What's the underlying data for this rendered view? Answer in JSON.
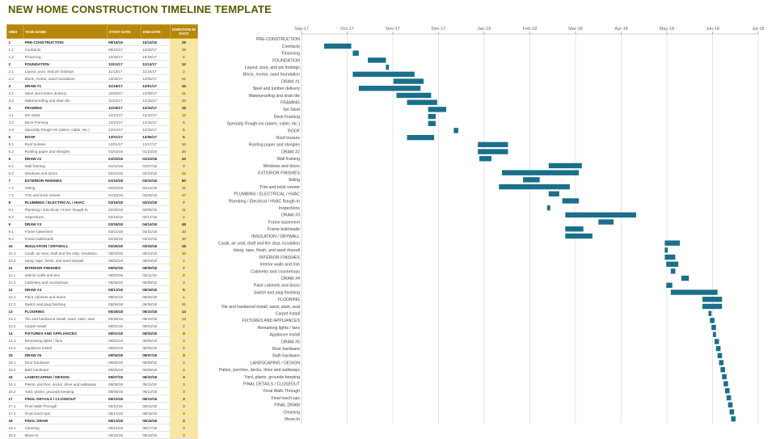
{
  "page": {
    "title": "NEW HOME CONSTRUCTION TIMELINE TEMPLATE"
  },
  "table": {
    "headers": [
      "WBS",
      "TASK NAME",
      "START DATE",
      "END DATE",
      "DURATION IN DAYS"
    ],
    "rows": [
      {
        "wbs": "1",
        "task": "PRE-CONSTRUCTION",
        "start": "09/16/16",
        "end": "10/14/16",
        "dur": "29",
        "phase": true
      },
      {
        "wbs": "1.1",
        "task": "Contracts",
        "start": "09/16/17",
        "end": "10/26/17",
        "dur": "18",
        "phase": false
      },
      {
        "wbs": "1.2",
        "task": "Financing",
        "start": "10/25/17",
        "end": "10/26/17",
        "dur": "4",
        "phase": false
      },
      {
        "wbs": "2",
        "task": "FOUNDATION",
        "start": "11/01/17",
        "end": "11/13/17",
        "dur": "12",
        "phase": true
      },
      {
        "wbs": "2.1",
        "task": "Layout, pour, and pin footings",
        "start": "11/13/17",
        "end": "11/15/17",
        "dur": "2",
        "phase": false
      },
      {
        "wbs": "2.2",
        "task": "Block, mortar, sand foundation",
        "start": "10/26/17",
        "end": "12/06/17",
        "dur": "41",
        "phase": false
      },
      {
        "wbs": "3",
        "task": "DRAW #1",
        "start": "11/16/17",
        "end": "12/01/17",
        "dur": "15",
        "phase": true
      },
      {
        "wbs": "3.1",
        "task": "Steel and lumber delivery",
        "start": "10/29/17",
        "end": "12/09/17",
        "dur": "41",
        "phase": false
      },
      {
        "wbs": "3.2",
        "task": "Waterproofing and drain tile",
        "start": "11/22/17",
        "end": "12/15/17",
        "dur": "23",
        "phase": false
      },
      {
        "wbs": "4",
        "task": "FRAMING",
        "start": "11/29/17",
        "end": "12/15/17",
        "dur": "16",
        "phase": true
      },
      {
        "wbs": "4.1",
        "task": "Set Steel",
        "start": "12/10/17",
        "end": "12/22/17",
        "dur": "12",
        "phase": false
      },
      {
        "wbs": "4.2",
        "task": "Deck Framing",
        "start": "12/10/17",
        "end": "12/15/17",
        "dur": "5",
        "phase": false
      },
      {
        "wbs": "4.3",
        "task": "Specialty Rough-ins (alarm, cable, etc.)",
        "start": "12/10/17",
        "end": "12/15/17",
        "dur": "5",
        "phase": false
      },
      {
        "wbs": "5",
        "task": "ROOF",
        "start": "12/01/17",
        "end": "12/06/17",
        "dur": "5",
        "phase": true
      },
      {
        "wbs": "5.1",
        "task": "Roof trusses",
        "start": "12/01/17",
        "end": "12/17/17",
        "dur": "16",
        "phase": false
      },
      {
        "wbs": "5.2",
        "task": "Roofing paper and shingles",
        "start": "01/03/18",
        "end": "01/23/18",
        "dur": "20",
        "phase": false
      },
      {
        "wbs": "6",
        "task": "DRAW #2",
        "start": "01/03/18",
        "end": "01/23/18",
        "dur": "20",
        "phase": true
      },
      {
        "wbs": "6.1",
        "task": "Wall framing",
        "start": "01/04/18",
        "end": "01/07/18",
        "dur": "3",
        "phase": false
      },
      {
        "wbs": "6.2",
        "task": "Windows and doors",
        "start": "02/16/18",
        "end": "03/10/18",
        "dur": "22",
        "phase": false
      },
      {
        "wbs": "7",
        "task": "EXTERIOR FINISHES",
        "start": "01/16/18",
        "end": "03/10/18",
        "dur": "50",
        "phase": true
      },
      {
        "wbs": "7.1",
        "task": "Siding",
        "start": "02/03/18",
        "end": "02/14/18",
        "dur": "11",
        "phase": false
      },
      {
        "wbs": "7.2",
        "task": "Trim and brick veneer",
        "start": "01/16/18",
        "end": "03/06/18",
        "dur": "47",
        "phase": false
      },
      {
        "wbs": "8",
        "task": "PLUMBING / ELECTRICAL / HVAC",
        "start": "02/16/18",
        "end": "02/23/18",
        "dur": "7",
        "phase": true
      },
      {
        "wbs": "8.1",
        "task": "Plumbing / Electrical / HVAC Rough-In",
        "start": "02/25/18",
        "end": "03/06/18",
        "dur": "11",
        "phase": false
      },
      {
        "wbs": "8.2",
        "task": "Inspections",
        "start": "02/15/18",
        "end": "02/17/18",
        "dur": "2",
        "phase": false
      },
      {
        "wbs": "9",
        "task": "DRAW #3",
        "start": "02/26/18",
        "end": "04/14/18",
        "dur": "48",
        "phase": true
      },
      {
        "wbs": "9.1",
        "task": "Frame basement",
        "start": "03/21/18",
        "end": "03/31/18",
        "dur": "10",
        "phase": false
      },
      {
        "wbs": "9.2",
        "task": "Frame bulkheads",
        "start": "02/26/18",
        "end": "03/10/18",
        "dur": "10",
        "phase": false
      },
      {
        "wbs": "10",
        "task": "INSULATION / DRYWALL",
        "start": "02/26/18",
        "end": "03/16/18",
        "dur": "18",
        "phase": true
      },
      {
        "wbs": "10.1",
        "task": "Caulk, air seal, draft and fire stop, insulation",
        "start": "05/03/18",
        "end": "05/13/18",
        "dur": "10",
        "phase": false
      },
      {
        "wbs": "10.2",
        "task": "Hang, tape, finish, and sand drywall",
        "start": "05/02/18",
        "end": "05/03/18",
        "dur": "1",
        "phase": false
      },
      {
        "wbs": "11",
        "task": "INTERIOR FINISHES",
        "start": "05/02/18",
        "end": "05/09/18",
        "dur": "7",
        "phase": true
      },
      {
        "wbs": "11.1",
        "task": "Interior walls and trim",
        "start": "05/03/18",
        "end": "05/11/18",
        "dur": "8",
        "phase": false
      },
      {
        "wbs": "11.2",
        "task": "Cabinetry and countertops",
        "start": "05/06/18",
        "end": "05/09/18",
        "dur": "3",
        "phase": false
      },
      {
        "wbs": "12",
        "task": "DRAW #4",
        "start": "05/13/18",
        "end": "05/18/18",
        "dur": "5",
        "phase": true
      },
      {
        "wbs": "12.1",
        "task": "Paint cabinets and doors",
        "start": "05/02/18",
        "end": "05/06/18",
        "dur": "4",
        "phase": false
      },
      {
        "wbs": "12.2",
        "task": "Switch and plug finishing",
        "start": "05/06/18",
        "end": "06/06/18",
        "dur": "31",
        "phase": false
      },
      {
        "wbs": "13",
        "task": "FLOORING",
        "start": "05/28/18",
        "end": "06/10/18",
        "dur": "13",
        "phase": true
      },
      {
        "wbs": "13.1",
        "task": "Tile and hardwood install, sand, stain, seal",
        "start": "05/28/18",
        "end": "06/10/18",
        "dur": "13",
        "phase": false
      },
      {
        "wbs": "13.2",
        "task": "Carpet install",
        "start": "06/01/18",
        "end": "06/03/18",
        "dur": "2",
        "phase": false
      },
      {
        "wbs": "14",
        "task": "FIXTURES AND APPLIANCES",
        "start": "06/01/18",
        "end": "06/04/18",
        "dur": "3",
        "phase": true
      },
      {
        "wbs": "14.1",
        "task": "Remaining lights / fans",
        "start": "06/02/18",
        "end": "06/05/18",
        "dur": "3",
        "phase": false
      },
      {
        "wbs": "14.2",
        "task": "Appliance install",
        "start": "06/04/18",
        "end": "06/06/18",
        "dur": "2",
        "phase": false
      },
      {
        "wbs": "15",
        "task": "DRAW #5",
        "start": "06/04/18",
        "end": "06/07/18",
        "dur": "3",
        "phase": true
      },
      {
        "wbs": "15.1",
        "task": "Door hardware",
        "start": "06/05/18",
        "end": "06/08/18",
        "dur": "3",
        "phase": false
      },
      {
        "wbs": "15.2",
        "task": "Bath hardware",
        "start": "06/06/18",
        "end": "06/09/18",
        "dur": "3",
        "phase": false
      },
      {
        "wbs": "16",
        "task": "LANDSCAPING / DESIGN",
        "start": "06/07/18",
        "end": "06/10/18",
        "dur": "3",
        "phase": true
      },
      {
        "wbs": "16.1",
        "task": "Patios, porches, decks, drive and walkways",
        "start": "06/08/18",
        "end": "06/11/18",
        "dur": "3",
        "phase": false
      },
      {
        "wbs": "16.2",
        "task": "Yard, plants, grounds keeping",
        "start": "06/09/18",
        "end": "06/12/18",
        "dur": "3",
        "phase": false
      },
      {
        "wbs": "17",
        "task": "FINAL DETAILS / CLOSEOUT",
        "start": "06/10/18",
        "end": "06/13/18",
        "dur": "3",
        "phase": true
      },
      {
        "wbs": "17.1",
        "task": "Final Walk-Through",
        "start": "06/11/18",
        "end": "06/14/18",
        "dur": "3",
        "phase": false
      },
      {
        "wbs": "17.2",
        "task": "Final touch-ups",
        "start": "06/12/18",
        "end": "06/15/18",
        "dur": "3",
        "phase": false
      },
      {
        "wbs": "18",
        "task": "FINAL DRAW",
        "start": "06/13/18",
        "end": "06/16/18",
        "dur": "3",
        "phase": true
      },
      {
        "wbs": "18.1",
        "task": "Cleaning",
        "start": "06/14/18",
        "end": "06/17/18",
        "dur": "3",
        "phase": false
      },
      {
        "wbs": "18.2",
        "task": "Move-In",
        "start": "06/15/18",
        "end": "06/18/18",
        "dur": "3",
        "phase": false
      }
    ]
  },
  "chart_data": {
    "type": "bar",
    "orientation": "horizontal-gantt",
    "x_ticks": [
      "Sep-17",
      "Oct-17",
      "Nov-17",
      "Dec-17",
      "Jan-18",
      "Feb-18",
      "Mar-18",
      "Apr-18",
      "May-18",
      "Jun-18",
      "Jul-18"
    ],
    "xlim": [
      "2017-09-01",
      "2018-07-01"
    ],
    "grid": true,
    "bar_color": "#1b6f8a",
    "tasks": [
      {
        "label": "PRE-CONSTRUCTION",
        "start": null,
        "end": null
      },
      {
        "label": "Contracts",
        "start": "2017-09-16",
        "end": "2017-10-04"
      },
      {
        "label": "Financing",
        "start": "2017-10-05",
        "end": "2017-10-09"
      },
      {
        "label": "FOUNDATION",
        "start": "2017-10-15",
        "end": "2017-10-27"
      },
      {
        "label": "Layout, pour, and pin footings",
        "start": "2017-10-27",
        "end": "2017-10-29"
      },
      {
        "label": "Block, mortar, sand foundation",
        "start": "2017-10-05",
        "end": "2017-11-15"
      },
      {
        "label": "DRAW #1",
        "start": "2017-11-01",
        "end": "2017-11-21"
      },
      {
        "label": "Steel and lumber delivery",
        "start": "2017-10-09",
        "end": "2017-11-19"
      },
      {
        "label": "Waterproofing and drain tile",
        "start": "2017-11-03",
        "end": "2017-11-26"
      },
      {
        "label": "FRAMING",
        "start": "2017-11-10",
        "end": "2017-11-30"
      },
      {
        "label": "Set Steel",
        "start": "2017-11-24",
        "end": "2017-12-06"
      },
      {
        "label": "Deck Framing",
        "start": "2017-11-24",
        "end": "2017-11-29"
      },
      {
        "label": "Specialty Rough-ins (alarm, cable, etc.)",
        "start": "2017-11-24",
        "end": "2017-11-29"
      },
      {
        "label": "ROOF",
        "start": "2017-12-11",
        "end": "2017-12-14"
      },
      {
        "label": "Roof trusses",
        "start": "2017-11-10",
        "end": "2017-11-28"
      },
      {
        "label": "Roofing paper and shingles",
        "start": "2017-12-27",
        "end": "2018-01-16"
      },
      {
        "label": "DRAW #2",
        "start": "2017-12-27",
        "end": "2018-01-16"
      },
      {
        "label": "Wall framing",
        "start": "2017-12-28",
        "end": "2018-01-05"
      },
      {
        "label": "Windows and doors",
        "start": "2018-02-12",
        "end": "2018-03-06"
      },
      {
        "label": "EXTERIOR FINISHES",
        "start": "2018-01-12",
        "end": "2018-03-04"
      },
      {
        "label": "Siding",
        "start": "2018-01-26",
        "end": "2018-02-06"
      },
      {
        "label": "Trim and brick veneer",
        "start": "2018-01-10",
        "end": "2018-02-26"
      },
      {
        "label": "PLUMBING / ELECTRICAL / HVAC",
        "start": "2018-02-12",
        "end": "2018-02-19"
      },
      {
        "label": "Plumbing / Electrical / HVAC Rough-In",
        "start": "2018-02-21",
        "end": "2018-03-04"
      },
      {
        "label": "Inspections",
        "start": "2018-02-11",
        "end": "2018-02-13"
      },
      {
        "label": "DRAW #3",
        "start": "2018-02-23",
        "end": "2018-04-11"
      },
      {
        "label": "Frame basement",
        "start": "2018-03-17",
        "end": "2018-03-27"
      },
      {
        "label": "Frame bulkheads",
        "start": "2018-02-23",
        "end": "2018-03-07"
      },
      {
        "label": "INSULATION / DRYWALL",
        "start": "2018-02-23",
        "end": "2018-03-13"
      },
      {
        "label": "Caulk, air seal, draft and fire stop, insulation",
        "start": "2018-04-30",
        "end": "2018-05-10"
      },
      {
        "label": "Hang, tape, finish, and sand drywall",
        "start": "2018-04-30",
        "end": "2018-05-02"
      },
      {
        "label": "INTERIOR FINISHES",
        "start": "2018-04-30",
        "end": "2018-05-07"
      },
      {
        "label": "Interior walls and trim",
        "start": "2018-05-01",
        "end": "2018-05-09"
      },
      {
        "label": "Cabinetry and countertops",
        "start": "2018-05-04",
        "end": "2018-05-07"
      },
      {
        "label": "DRAW #4",
        "start": "2018-05-11",
        "end": "2018-05-16"
      },
      {
        "label": "Paint cabinets and doors",
        "start": "2018-05-01",
        "end": "2018-05-05"
      },
      {
        "label": "Switch and plug finishing",
        "start": "2018-05-04",
        "end": "2018-06-04"
      },
      {
        "label": "FLOORING",
        "start": "2018-05-25",
        "end": "2018-06-07"
      },
      {
        "label": "Tile and hardwood install, sand, stain, seal",
        "start": "2018-05-25",
        "end": "2018-06-07"
      },
      {
        "label": "Carpet install",
        "start": "2018-05-29",
        "end": "2018-05-31"
      },
      {
        "label": "FIXTURES AND APPLIANCES",
        "start": "2018-05-30",
        "end": "2018-06-02"
      },
      {
        "label": "Remaining lights / fans",
        "start": "2018-05-31",
        "end": "2018-06-03"
      },
      {
        "label": "Appliance install",
        "start": "2018-06-01",
        "end": "2018-06-03"
      },
      {
        "label": "DRAW #5",
        "start": "2018-06-02",
        "end": "2018-06-05"
      },
      {
        "label": "Door hardware",
        "start": "2018-06-03",
        "end": "2018-06-06"
      },
      {
        "label": "Bath hardware",
        "start": "2018-06-04",
        "end": "2018-06-07"
      },
      {
        "label": "LANDSCAPING / DESIGN",
        "start": "2018-06-05",
        "end": "2018-06-08"
      },
      {
        "label": "Patios, porches, decks, drive and walkways",
        "start": "2018-06-06",
        "end": "2018-06-09"
      },
      {
        "label": "Yard, plants, grounds-keeping",
        "start": "2018-06-07",
        "end": "2018-06-10"
      },
      {
        "label": "FINAL DETAILS / CLOSEOUT",
        "start": "2018-06-08",
        "end": "2018-06-11"
      },
      {
        "label": "Final Walk-Through",
        "start": "2018-06-09",
        "end": "2018-06-12"
      },
      {
        "label": "Final touch-ups",
        "start": "2018-06-10",
        "end": "2018-06-13"
      },
      {
        "label": "FINAL DRAW",
        "start": "2018-06-11",
        "end": "2018-06-14"
      },
      {
        "label": "Cleaning",
        "start": "2018-06-12",
        "end": "2018-06-15"
      },
      {
        "label": "Move-In",
        "start": "2018-06-13",
        "end": "2018-06-16"
      }
    ]
  }
}
